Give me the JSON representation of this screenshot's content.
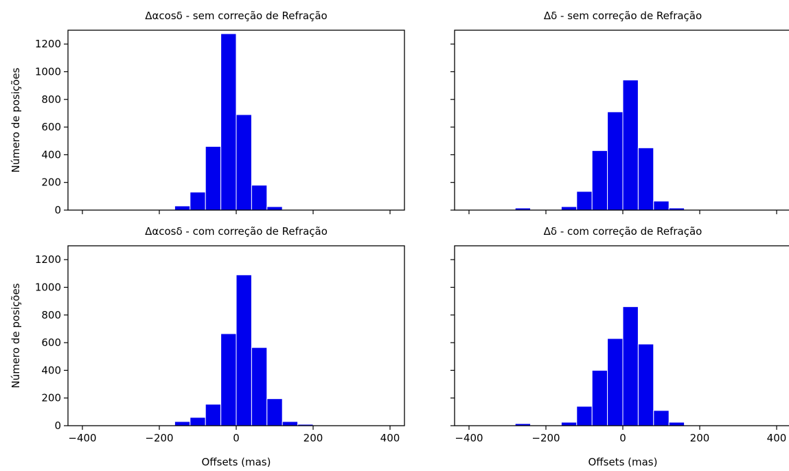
{
  "figure": {
    "ylabel": "Número de posições",
    "xlabel": "Offsets (mas)",
    "bar_color": "#0000ee"
  },
  "chart_data": [
    {
      "type": "bar",
      "title": "Δαcosδ - sem correção de Refração",
      "xlabel": "",
      "ylabel": "Número de posições",
      "bin_width": 40,
      "bin_centers": [
        -340,
        -300,
        -260,
        -220,
        -180,
        -140,
        -100,
        -60,
        -20,
        20,
        60,
        100,
        140,
        180,
        220,
        260,
        300,
        340
      ],
      "values": [
        0,
        0,
        0,
        0,
        5,
        30,
        130,
        460,
        1275,
        690,
        180,
        25,
        3,
        0,
        0,
        0,
        0,
        0
      ],
      "xlim": [
        -400,
        400
      ],
      "ylim": [
        0,
        1300
      ],
      "xticks": [
        -400,
        -200,
        0,
        200,
        400
      ],
      "yticks": [
        0,
        200,
        400,
        600,
        800,
        1000,
        1200
      ],
      "xtick_labels": [],
      "ytick_labels": [
        "0",
        "200",
        "400",
        "600",
        "800",
        "1000",
        "1200"
      ]
    },
    {
      "type": "bar",
      "title": "Δδ - sem correção de Refração",
      "xlabel": "",
      "ylabel": "",
      "bin_width": 40,
      "bin_centers": [
        -340,
        -300,
        -260,
        -220,
        -180,
        -140,
        -100,
        -60,
        -20,
        20,
        60,
        100,
        140,
        180,
        220,
        260,
        300,
        340
      ],
      "values": [
        0,
        0,
        15,
        5,
        0,
        25,
        135,
        430,
        710,
        940,
        450,
        65,
        15,
        0,
        0,
        0,
        0,
        0
      ],
      "xlim": [
        -400,
        400
      ],
      "ylim": [
        0,
        1300
      ],
      "xticks": [
        -400,
        -200,
        0,
        200,
        400
      ],
      "yticks": [
        0,
        200,
        400,
        600,
        800,
        1000,
        1200
      ],
      "xtick_labels": [],
      "ytick_labels": []
    },
    {
      "type": "bar",
      "title": "Δαcosδ - com correção de Refração",
      "xlabel": "Offsets (mas)",
      "ylabel": "Número de posições",
      "bin_width": 40,
      "bin_centers": [
        -340,
        -300,
        -260,
        -220,
        -180,
        -140,
        -100,
        -60,
        -20,
        20,
        60,
        100,
        140,
        180,
        220,
        260,
        300,
        340
      ],
      "values": [
        0,
        0,
        0,
        0,
        5,
        30,
        60,
        155,
        665,
        1090,
        565,
        195,
        30,
        10,
        0,
        0,
        0,
        0
      ],
      "xlim": [
        -400,
        400
      ],
      "ylim": [
        0,
        1300
      ],
      "xticks": [
        -400,
        -200,
        0,
        200,
        400
      ],
      "yticks": [
        0,
        200,
        400,
        600,
        800,
        1000,
        1200
      ],
      "xtick_labels": [
        "−400",
        "−200",
        "0",
        "200",
        "400"
      ],
      "ytick_labels": [
        "0",
        "200",
        "400",
        "600",
        "800",
        "1000",
        "1200"
      ]
    },
    {
      "type": "bar",
      "title": "Δδ - com correção de Refração",
      "xlabel": "Offsets (mas)",
      "ylabel": "",
      "bin_width": 40,
      "bin_centers": [
        -340,
        -300,
        -260,
        -220,
        -180,
        -140,
        -100,
        -60,
        -20,
        20,
        60,
        100,
        140,
        180,
        220,
        260,
        300,
        340
      ],
      "values": [
        0,
        0,
        15,
        5,
        0,
        25,
        140,
        400,
        630,
        860,
        590,
        110,
        25,
        0,
        0,
        0,
        0,
        0
      ],
      "xlim": [
        -400,
        400
      ],
      "ylim": [
        0,
        1300
      ],
      "xticks": [
        -400,
        -200,
        0,
        200,
        400
      ],
      "yticks": [
        0,
        200,
        400,
        600,
        800,
        1000,
        1200
      ],
      "xtick_labels": [
        "−400",
        "−200",
        "0",
        "200",
        "400"
      ],
      "ytick_labels": []
    }
  ]
}
